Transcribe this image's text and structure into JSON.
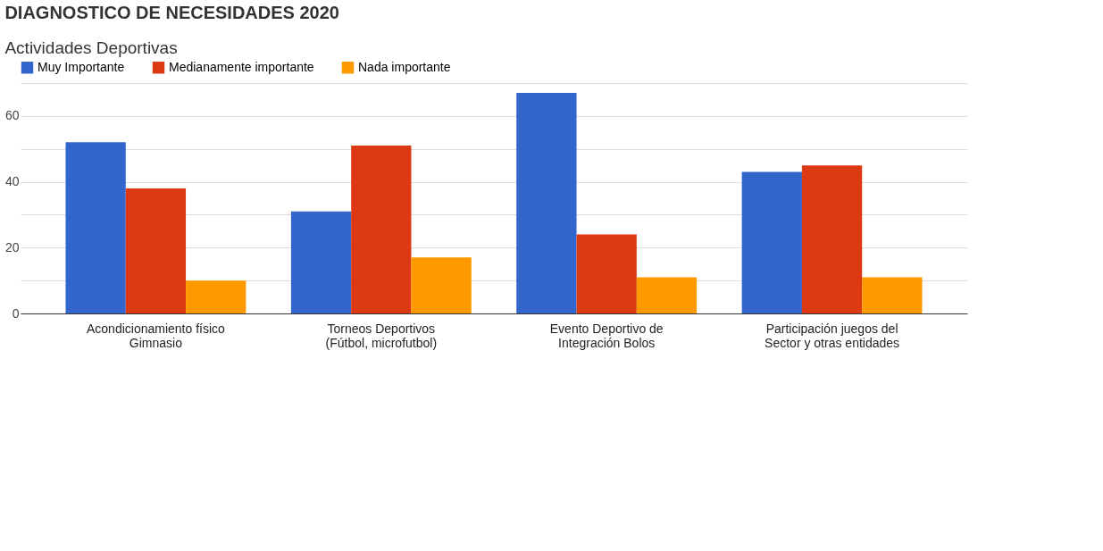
{
  "chart_data": {
    "type": "bar",
    "title": "DIAGNOSTICO DE NECESIDADES 2020",
    "subtitle": "Actividades Deportivas",
    "categories": [
      "Acondicionamiento físico Gimnasio",
      "Torneos Deportivos (Fútbol, microfutbol)",
      "Evento Deportivo de Integración Bolos",
      "Participación juegos del Sector y otras entidades"
    ],
    "series": [
      {
        "name": "Muy Importante",
        "color": "#3366cc",
        "values": [
          52,
          31,
          67,
          43
        ]
      },
      {
        "name": "Medianamente importante",
        "color": "#dc3912",
        "values": [
          38,
          51,
          24,
          45
        ]
      },
      {
        "name": "Nada importante",
        "color": "#ff9900",
        "values": [
          10,
          17,
          11,
          11
        ]
      }
    ],
    "ylim": [
      0,
      70
    ],
    "yticks": [
      0,
      {
        "value": 10,
        "label": null
      },
      20,
      {
        "value": 30,
        "label": null
      },
      40,
      {
        "value": 50,
        "label": null
      },
      60,
      {
        "value": 70,
        "label": null
      }
    ],
    "grid": true,
    "legend": "top left"
  }
}
